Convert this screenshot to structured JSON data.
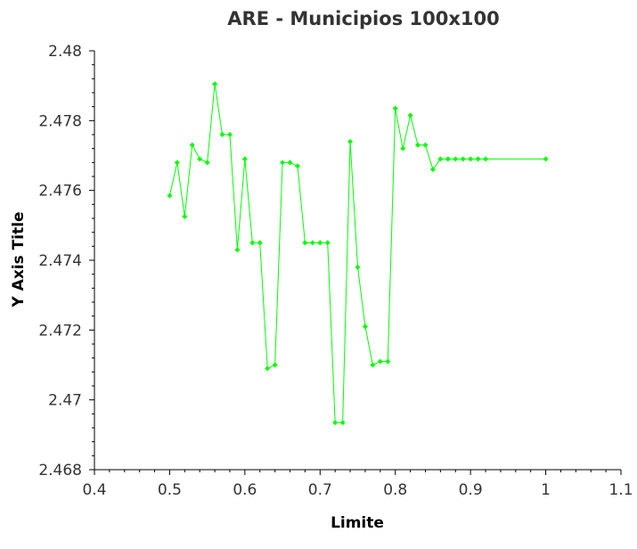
{
  "chart_data": {
    "type": "line",
    "title": "ARE - Municipios 100x100",
    "xlabel": "Limite",
    "ylabel": "Y Axis Title",
    "xlim": [
      0.4,
      1.1
    ],
    "ylim": [
      2.468,
      2.48
    ],
    "x_ticks": [
      "0.4",
      "0.5",
      "0.6",
      "0.7",
      "0.8",
      "0.9",
      "1",
      "1.1"
    ],
    "y_ticks": [
      "2.468",
      "2.47",
      "2.472",
      "2.474",
      "2.476",
      "2.478",
      "2.48"
    ],
    "grid": false,
    "legend": "none",
    "series": [
      {
        "color": "#00ff00",
        "x": [
          0.5,
          0.51,
          0.52,
          0.53,
          0.54,
          0.55,
          0.56,
          0.57,
          0.58,
          0.59,
          0.6,
          0.61,
          0.62,
          0.63,
          0.64,
          0.65,
          0.66,
          0.67,
          0.68,
          0.69,
          0.7,
          0.71,
          0.72,
          0.73,
          0.74,
          0.75,
          0.76,
          0.77,
          0.78,
          0.79,
          0.8,
          0.81,
          0.82,
          0.83,
          0.84,
          0.85,
          0.86,
          0.87,
          0.88,
          0.89,
          0.9,
          0.91,
          0.92,
          1.0
        ],
        "y": [
          2.47585,
          2.4768,
          2.47525,
          2.4773,
          2.4769,
          2.4768,
          2.47905,
          2.4776,
          2.4776,
          2.4743,
          2.4769,
          2.4745,
          2.4745,
          2.4709,
          2.471,
          2.4768,
          2.4768,
          2.4767,
          2.4745,
          2.4745,
          2.4745,
          2.4745,
          2.46935,
          2.46935,
          2.4774,
          2.4738,
          2.4721,
          2.471,
          2.4711,
          2.4711,
          2.47835,
          2.4772,
          2.47815,
          2.4773,
          2.4773,
          2.4766,
          2.4769,
          2.4769,
          2.4769,
          2.4769,
          2.4769,
          2.4769,
          2.4769,
          2.4769
        ]
      }
    ]
  }
}
